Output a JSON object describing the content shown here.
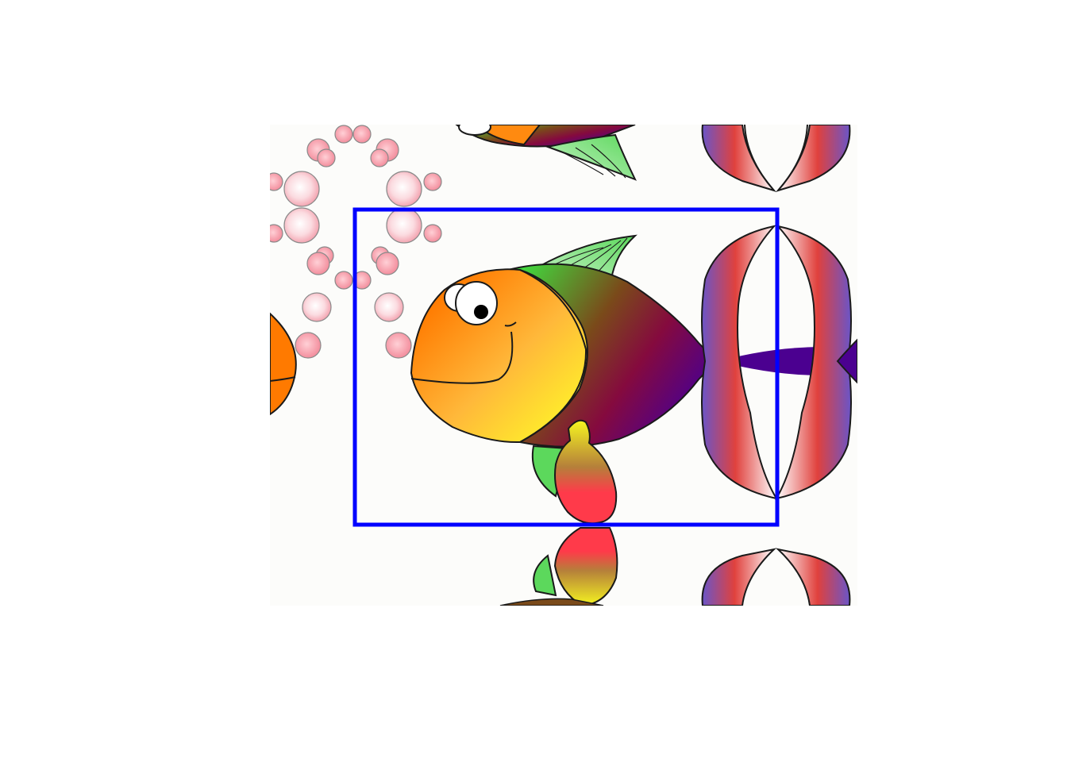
{
  "image": {
    "subject": "tiled-cartoon-fish-pattern",
    "background_color": "#ffffff",
    "tile_background_color": "#fcfcfa"
  },
  "selection_box": {
    "color": "#0000ff",
    "shape": "rectangle"
  },
  "fish": {
    "head_colors": [
      "#ff7a00",
      "#ffef2a"
    ],
    "body_colors": [
      "#3fdc3f",
      "#7a0a3a",
      "#4b0090"
    ],
    "fin_color": "#8ee88e",
    "outline_color": "#1a1a1a"
  },
  "bubbles": {
    "color": "#f7b6c1"
  },
  "tail": {
    "colors": [
      "#ffffff",
      "#6a55c8",
      "#e0413d"
    ]
  }
}
